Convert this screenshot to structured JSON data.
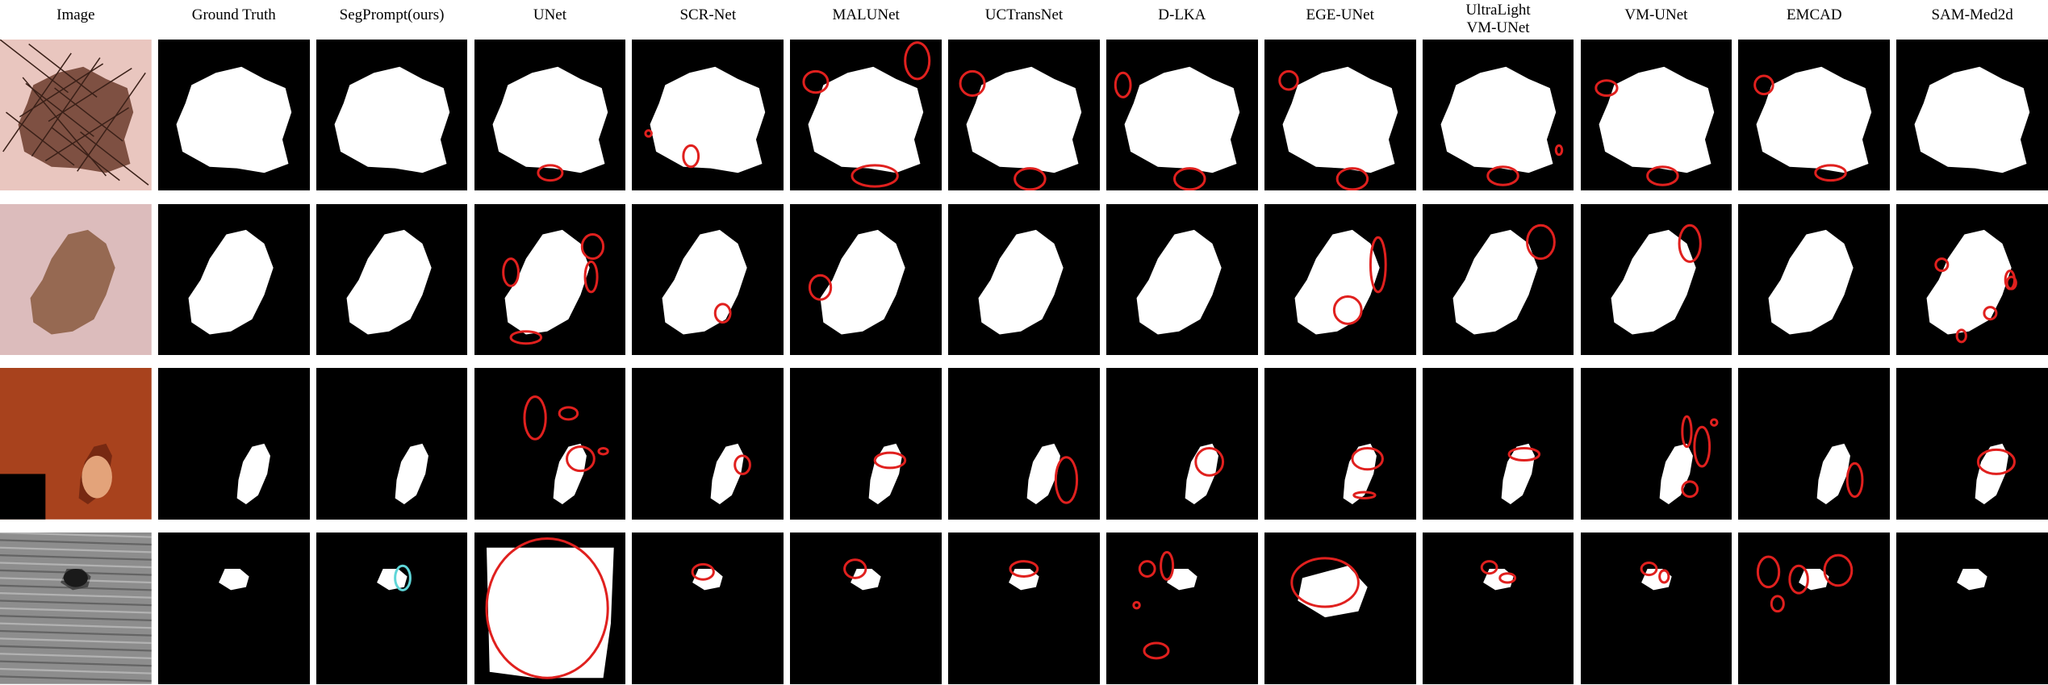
{
  "columns": [
    {
      "label": "Image"
    },
    {
      "label": "Ground Truth"
    },
    {
      "label": "SegPrompt(ours)"
    },
    {
      "label": "UNet"
    },
    {
      "label": "SCR-Net"
    },
    {
      "label": "MALUNet"
    },
    {
      "label": "UCTransNet"
    },
    {
      "label": "D-LKA"
    },
    {
      "label": "EGE-UNet"
    },
    {
      "label": "UltraLight VM-UNet",
      "lines": [
        "UltraLight",
        "VM-UNet"
      ]
    },
    {
      "label": "VM-UNet"
    },
    {
      "label": "EMCAD"
    },
    {
      "label": "SAM-Med2d"
    }
  ],
  "rows": [
    {
      "modality": "dermoscopy",
      "image_palette": [
        "#e9c6bf",
        "#6b3b2c",
        "#3a2018"
      ]
    },
    {
      "modality": "dermoscopy",
      "image_palette": [
        "#dcbcbc",
        "#8a5a40",
        "#b48f80"
      ]
    },
    {
      "modality": "endoscopy",
      "image_palette": [
        "#a8421d",
        "#6e2410",
        "#e3a37a"
      ]
    },
    {
      "modality": "ultrasound",
      "image_palette": [
        "#8d8d8d",
        "#3c3c3c",
        "#d8d8d8"
      ]
    }
  ],
  "colors": {
    "mask_background": "#000000",
    "mask_foreground": "#ffffff",
    "error_highlight": "#e0201e",
    "ours_highlight": "#5fd6d8"
  }
}
